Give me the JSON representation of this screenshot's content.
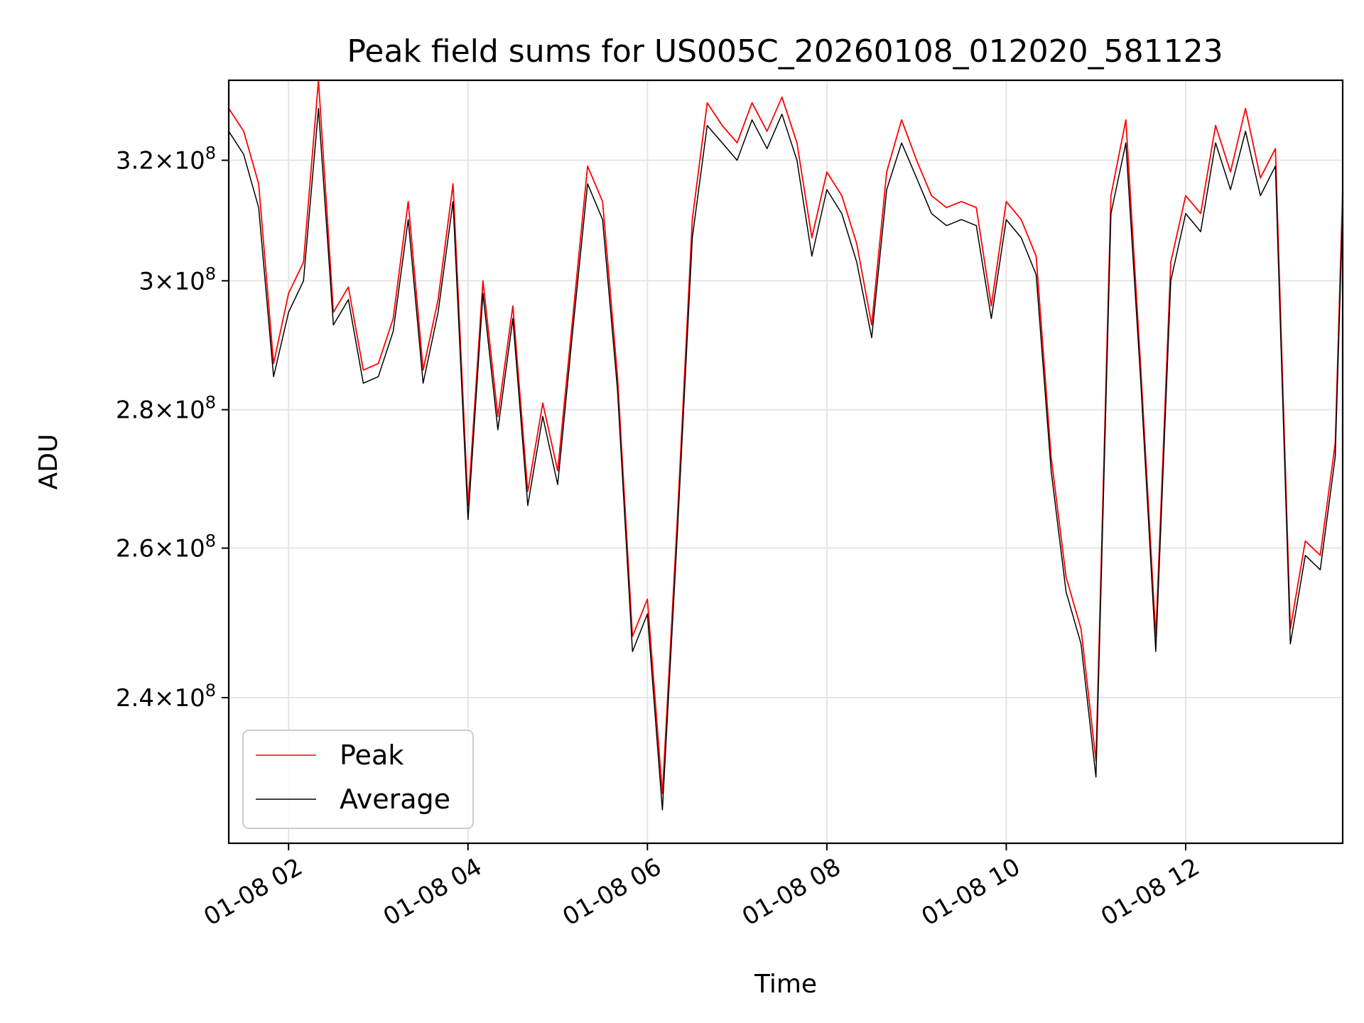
{
  "chart_data": {
    "type": "line",
    "title": "Peak field sums for US005C_20260108_012020_581123",
    "xlabel": "Time",
    "ylabel": "ADU",
    "x_unit": "time (01-08 HH:MM)",
    "xlim": [
      "01-08 01:20",
      "01-08 13:45"
    ],
    "ylim": [
      222000000,
      334000000
    ],
    "y_scale": "log",
    "grid": true,
    "legend_position": "lower-left",
    "x_ticks": [
      {
        "value": "01-08 02:00",
        "label": "01-08 02"
      },
      {
        "value": "01-08 04:00",
        "label": "01-08 04"
      },
      {
        "value": "01-08 06:00",
        "label": "01-08 06"
      },
      {
        "value": "01-08 08:00",
        "label": "01-08 08"
      },
      {
        "value": "01-08 10:00",
        "label": "01-08 10"
      },
      {
        "value": "01-08 12:00",
        "label": "01-08 12"
      }
    ],
    "y_ticks": [
      {
        "value": 240000000,
        "mantissa": "2.4",
        "base": "10",
        "exp": "8"
      },
      {
        "value": 260000000,
        "mantissa": "2.6",
        "base": "10",
        "exp": "8"
      },
      {
        "value": 280000000,
        "mantissa": "2.8",
        "base": "10",
        "exp": "8"
      },
      {
        "value": 300000000,
        "mantissa": "3",
        "base": "10",
        "exp": "8"
      },
      {
        "value": 320000000,
        "mantissa": "3.2",
        "base": "10",
        "exp": "8"
      }
    ],
    "x": [
      "01:20",
      "01:30",
      "01:40",
      "01:50",
      "02:00",
      "02:10",
      "02:20",
      "02:30",
      "02:40",
      "02:50",
      "03:00",
      "03:10",
      "03:20",
      "03:30",
      "03:40",
      "03:50",
      "04:00",
      "04:10",
      "04:20",
      "04:30",
      "04:40",
      "04:50",
      "05:00",
      "05:10",
      "05:20",
      "05:30",
      "05:40",
      "05:50",
      "06:00",
      "06:10",
      "06:20",
      "06:30",
      "06:40",
      "06:50",
      "07:00",
      "07:10",
      "07:20",
      "07:30",
      "07:40",
      "07:50",
      "08:00",
      "08:10",
      "08:20",
      "08:30",
      "08:40",
      "08:50",
      "09:00",
      "09:10",
      "09:20",
      "09:30",
      "09:40",
      "09:50",
      "10:00",
      "10:10",
      "10:20",
      "10:30",
      "10:40",
      "10:50",
      "11:00",
      "11:10",
      "11:20",
      "11:30",
      "11:40",
      "11:50",
      "12:00",
      "12:10",
      "12:20",
      "12:30",
      "12:40",
      "12:50",
      "13:00",
      "13:10",
      "13:20",
      "13:30",
      "13:40",
      "13:45"
    ],
    "series": [
      {
        "name": "Peak",
        "color": "#ff0000",
        "values": [
          329000000,
          325000000,
          316000000,
          287000000,
          298000000,
          303000000,
          334000000,
          295000000,
          299000000,
          286000000,
          287000000,
          294000000,
          313000000,
          286000000,
          297000000,
          316000000,
          266000000,
          300000000,
          279000000,
          296000000,
          268000000,
          281000000,
          271000000,
          294000000,
          319000000,
          313000000,
          285000000,
          248000000,
          253000000,
          228000000,
          264000000,
          310000000,
          330000000,
          326000000,
          323000000,
          330000000,
          325000000,
          331000000,
          323000000,
          307000000,
          318000000,
          314000000,
          306000000,
          293000000,
          318000000,
          327000000,
          320000000,
          314000000,
          312000000,
          313000000,
          312000000,
          296000000,
          313000000,
          310000000,
          304000000,
          273000000,
          256000000,
          249000000,
          232000000,
          314000000,
          327000000,
          286000000,
          248000000,
          303000000,
          314000000,
          311000000,
          326000000,
          318000000,
          329000000,
          317000000,
          322000000,
          249000000,
          261000000,
          259000000,
          275000000,
          315000000
        ]
      },
      {
        "name": "Average",
        "color": "#000000",
        "values": [
          325000000,
          321000000,
          312000000,
          285000000,
          295000000,
          300000000,
          329000000,
          293000000,
          297000000,
          284000000,
          285000000,
          292000000,
          310000000,
          284000000,
          295000000,
          313000000,
          264000000,
          298000000,
          277000000,
          294000000,
          266000000,
          279000000,
          269000000,
          292000000,
          316000000,
          310000000,
          283000000,
          246000000,
          251000000,
          226000000,
          262000000,
          307000000,
          326000000,
          323000000,
          320000000,
          327000000,
          322000000,
          328000000,
          320000000,
          304000000,
          315000000,
          311000000,
          303000000,
          291000000,
          315000000,
          323000000,
          317000000,
          311000000,
          309000000,
          310000000,
          309000000,
          294000000,
          310000000,
          307000000,
          301000000,
          271000000,
          254000000,
          247000000,
          230000000,
          311000000,
          323000000,
          284000000,
          246000000,
          300000000,
          311000000,
          308000000,
          323000000,
          315000000,
          325000000,
          314000000,
          319000000,
          247000000,
          259000000,
          257000000,
          273000000,
          312000000
        ]
      }
    ]
  }
}
